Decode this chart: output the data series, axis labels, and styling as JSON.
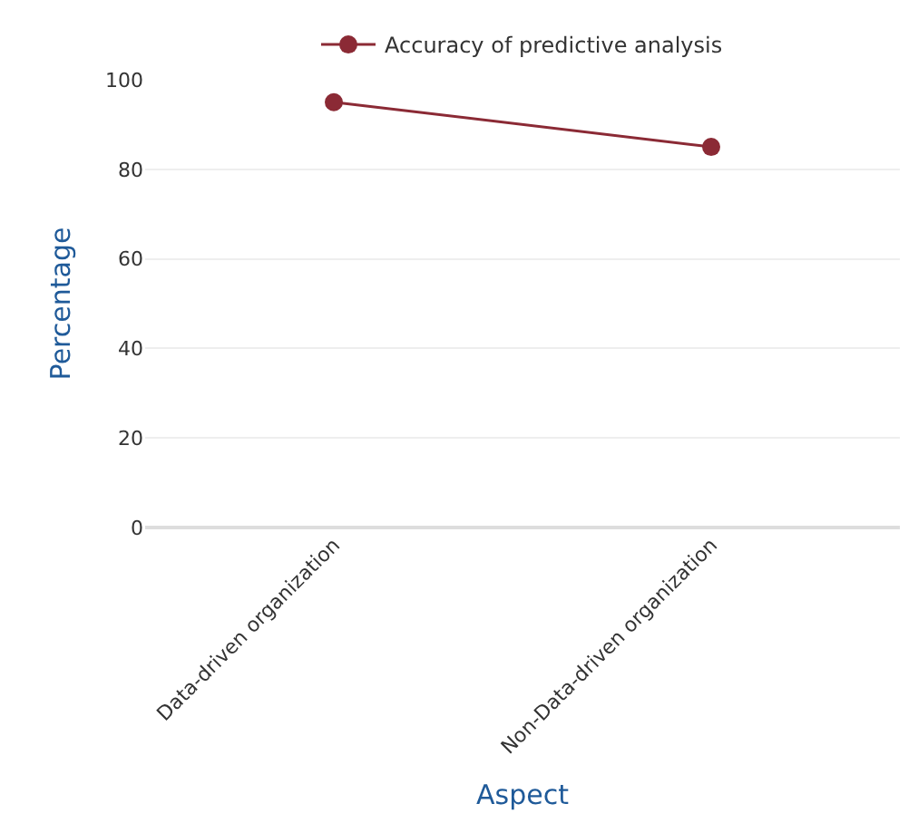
{
  "chart_data": {
    "type": "line",
    "categories": [
      "Data-driven organization",
      "Non-Data-driven organization"
    ],
    "series": [
      {
        "name": "Accuracy of predictive analysis",
        "color": "#8b2a35",
        "values": [
          95,
          85
        ]
      }
    ],
    "xlabel": "Aspect",
    "ylabel": "Percentage",
    "ylim": [
      0,
      100
    ],
    "yticks": [
      0,
      20,
      40,
      60,
      80,
      100
    ],
    "grid": "y",
    "legend": "top",
    "marker": "circle",
    "line_style": "solid"
  }
}
